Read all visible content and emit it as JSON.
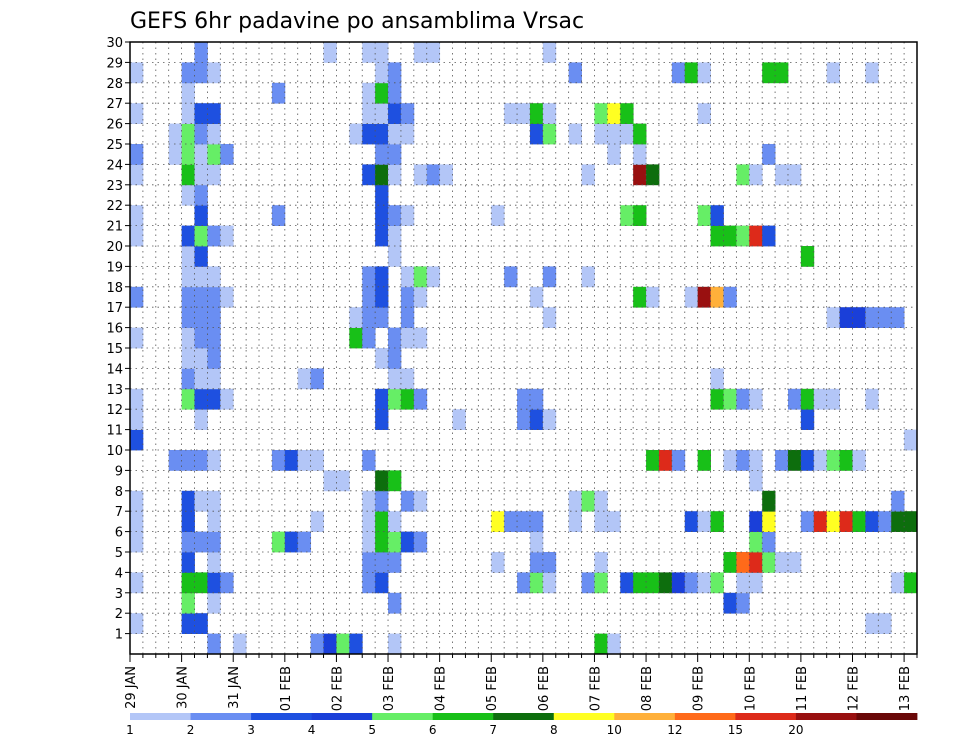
{
  "chart_data": {
    "type": "heatmap",
    "title": "GEFS 6hr padavine po ansamblima Vrsac",
    "xlabel": "",
    "ylabel": "",
    "x_ticks": [
      "29 JAN",
      "30 JAN",
      "31 JAN",
      "01 FEB",
      "02 FEB",
      "03 FEB",
      "04 FEB",
      "05 FEB",
      "06 FEB",
      "07 FEB",
      "08 FEB",
      "09 FEB",
      "10 FEB",
      "11 FEB",
      "12 FEB",
      "13 FEB"
    ],
    "y_ticks": [
      1,
      2,
      3,
      4,
      5,
      6,
      7,
      8,
      9,
      10,
      11,
      12,
      13,
      14,
      15,
      16,
      17,
      18,
      19,
      20,
      21,
      22,
      23,
      24,
      25,
      26,
      27,
      28,
      29,
      30
    ],
    "ylim": [
      0,
      30
    ],
    "time_steps": 61,
    "steps_per_day": 4,
    "grid": true,
    "legend_position": "bottom",
    "legend": {
      "labels": [
        "1",
        "2",
        "3",
        "4",
        "5",
        "6",
        "7",
        "8",
        "10",
        "12",
        "15",
        "20"
      ],
      "colors": [
        "#b3c6f7",
        "#6a8ef2",
        "#1e50e0",
        "#1a3fd9",
        "#66ee66",
        "#18c018",
        "#0d6e0d",
        "#ffff22",
        "#ffb03a",
        "#ff6a1a",
        "#dd2a1a",
        "#991010",
        "#6a0808"
      ]
    },
    "cells": [
      [
        1,
        7,
        2
      ],
      [
        1,
        9,
        1
      ],
      [
        1,
        15,
        2
      ],
      [
        1,
        16,
        4
      ],
      [
        1,
        17,
        5
      ],
      [
        1,
        18,
        3
      ],
      [
        1,
        21,
        1
      ],
      [
        1,
        37,
        6
      ],
      [
        1,
        38,
        1
      ],
      [
        2,
        1,
        1
      ],
      [
        2,
        5,
        3
      ],
      [
        2,
        6,
        3
      ],
      [
        2,
        58,
        1
      ],
      [
        2,
        59,
        1
      ],
      [
        3,
        5,
        5
      ],
      [
        3,
        7,
        1
      ],
      [
        3,
        21,
        2
      ],
      [
        3,
        47,
        3
      ],
      [
        3,
        48,
        2
      ],
      [
        4,
        1,
        1
      ],
      [
        4,
        5,
        6
      ],
      [
        4,
        6,
        6
      ],
      [
        4,
        7,
        3
      ],
      [
        4,
        8,
        2
      ],
      [
        4,
        19,
        2
      ],
      [
        4,
        20,
        3
      ],
      [
        4,
        31,
        2
      ],
      [
        4,
        32,
        5
      ],
      [
        4,
        33,
        1
      ],
      [
        4,
        36,
        2
      ],
      [
        4,
        37,
        5
      ],
      [
        4,
        39,
        3
      ],
      [
        4,
        40,
        6
      ],
      [
        4,
        41,
        6
      ],
      [
        4,
        42,
        7
      ],
      [
        4,
        43,
        4
      ],
      [
        4,
        44,
        2
      ],
      [
        4,
        45,
        1
      ],
      [
        4,
        46,
        5
      ],
      [
        4,
        48,
        1
      ],
      [
        4,
        49,
        1
      ],
      [
        4,
        60,
        1
      ],
      [
        4,
        61,
        6
      ],
      [
        5,
        5,
        3
      ],
      [
        5,
        7,
        1
      ],
      [
        5,
        19,
        2
      ],
      [
        5,
        20,
        2
      ],
      [
        5,
        21,
        2
      ],
      [
        5,
        29,
        1
      ],
      [
        5,
        32,
        2
      ],
      [
        5,
        33,
        2
      ],
      [
        5,
        37,
        1
      ],
      [
        5,
        47,
        6
      ],
      [
        5,
        48,
        10
      ],
      [
        5,
        49,
        11
      ],
      [
        5,
        50,
        5
      ],
      [
        5,
        51,
        1
      ],
      [
        5,
        52,
        1
      ],
      [
        6,
        1,
        1
      ],
      [
        6,
        5,
        2
      ],
      [
        6,
        6,
        2
      ],
      [
        6,
        7,
        2
      ],
      [
        6,
        12,
        5
      ],
      [
        6,
        13,
        3
      ],
      [
        6,
        14,
        2
      ],
      [
        6,
        19,
        1
      ],
      [
        6,
        20,
        6
      ],
      [
        6,
        21,
        5
      ],
      [
        6,
        22,
        3
      ],
      [
        6,
        23,
        2
      ],
      [
        6,
        32,
        1
      ],
      [
        6,
        49,
        5
      ],
      [
        6,
        50,
        2
      ],
      [
        7,
        1,
        1
      ],
      [
        7,
        5,
        3
      ],
      [
        7,
        7,
        1
      ],
      [
        7,
        15,
        1
      ],
      [
        7,
        19,
        1
      ],
      [
        7,
        20,
        6
      ],
      [
        7,
        21,
        1
      ],
      [
        7,
        29,
        8
      ],
      [
        7,
        30,
        2
      ],
      [
        7,
        31,
        2
      ],
      [
        7,
        32,
        2
      ],
      [
        7,
        35,
        1
      ],
      [
        7,
        37,
        1
      ],
      [
        7,
        38,
        1
      ],
      [
        7,
        44,
        3
      ],
      [
        7,
        45,
        1
      ],
      [
        7,
        46,
        6
      ],
      [
        7,
        49,
        4
      ],
      [
        7,
        50,
        8
      ],
      [
        7,
        53,
        2
      ],
      [
        7,
        54,
        11
      ],
      [
        7,
        55,
        8
      ],
      [
        7,
        56,
        11
      ],
      [
        7,
        57,
        6
      ],
      [
        7,
        58,
        3
      ],
      [
        7,
        59,
        2
      ],
      [
        7,
        60,
        7
      ],
      [
        7,
        61,
        7
      ],
      [
        8,
        1,
        1
      ],
      [
        8,
        5,
        3
      ],
      [
        8,
        6,
        1
      ],
      [
        8,
        7,
        1
      ],
      [
        8,
        19,
        1
      ],
      [
        8,
        20,
        2
      ],
      [
        8,
        22,
        2
      ],
      [
        8,
        23,
        1
      ],
      [
        8,
        35,
        1
      ],
      [
        8,
        36,
        5
      ],
      [
        8,
        37,
        1
      ],
      [
        8,
        50,
        7
      ],
      [
        8,
        60,
        2
      ],
      [
        9,
        16,
        1
      ],
      [
        9,
        17,
        1
      ],
      [
        9,
        20,
        7
      ],
      [
        9,
        21,
        6
      ],
      [
        9,
        49,
        1
      ],
      [
        10,
        4,
        2
      ],
      [
        10,
        5,
        2
      ],
      [
        10,
        6,
        2
      ],
      [
        10,
        7,
        1
      ],
      [
        10,
        12,
        2
      ],
      [
        10,
        13,
        3
      ],
      [
        10,
        14,
        1
      ],
      [
        10,
        15,
        1
      ],
      [
        10,
        19,
        2
      ],
      [
        10,
        41,
        6
      ],
      [
        10,
        42,
        11
      ],
      [
        10,
        43,
        2
      ],
      [
        10,
        45,
        6
      ],
      [
        10,
        47,
        1
      ],
      [
        10,
        48,
        2
      ],
      [
        10,
        49,
        1
      ],
      [
        10,
        51,
        2
      ],
      [
        10,
        52,
        7
      ],
      [
        10,
        53,
        3
      ],
      [
        10,
        54,
        1
      ],
      [
        10,
        55,
        5
      ],
      [
        10,
        56,
        6
      ],
      [
        10,
        57,
        1
      ],
      [
        11,
        1,
        3
      ],
      [
        11,
        61,
        1
      ],
      [
        12,
        1,
        1
      ],
      [
        12,
        6,
        1
      ],
      [
        12,
        20,
        3
      ],
      [
        12,
        26,
        1
      ],
      [
        12,
        31,
        2
      ],
      [
        12,
        32,
        3
      ],
      [
        12,
        33,
        1
      ],
      [
        12,
        53,
        3
      ],
      [
        13,
        1,
        1
      ],
      [
        13,
        5,
        5
      ],
      [
        13,
        6,
        3
      ],
      [
        13,
        7,
        3
      ],
      [
        13,
        8,
        1
      ],
      [
        13,
        20,
        3
      ],
      [
        13,
        21,
        5
      ],
      [
        13,
        22,
        6
      ],
      [
        13,
        23,
        2
      ],
      [
        13,
        31,
        2
      ],
      [
        13,
        32,
        2
      ],
      [
        13,
        46,
        6
      ],
      [
        13,
        47,
        5
      ],
      [
        13,
        48,
        2
      ],
      [
        13,
        49,
        1
      ],
      [
        13,
        52,
        2
      ],
      [
        13,
        53,
        6
      ],
      [
        13,
        54,
        1
      ],
      [
        13,
        55,
        1
      ],
      [
        13,
        58,
        1
      ],
      [
        14,
        5,
        2
      ],
      [
        14,
        6,
        1
      ],
      [
        14,
        7,
        1
      ],
      [
        14,
        14,
        1
      ],
      [
        14,
        15,
        2
      ],
      [
        14,
        21,
        1
      ],
      [
        14,
        22,
        1
      ],
      [
        14,
        46,
        1
      ],
      [
        15,
        5,
        1
      ],
      [
        15,
        6,
        1
      ],
      [
        15,
        7,
        2
      ],
      [
        15,
        20,
        1
      ],
      [
        15,
        21,
        2
      ],
      [
        16,
        1,
        1
      ],
      [
        16,
        5,
        1
      ],
      [
        16,
        6,
        2
      ],
      [
        16,
        7,
        2
      ],
      [
        16,
        18,
        6
      ],
      [
        16,
        19,
        2
      ],
      [
        16,
        21,
        2
      ],
      [
        16,
        22,
        1
      ],
      [
        16,
        23,
        1
      ],
      [
        17,
        5,
        2
      ],
      [
        17,
        6,
        2
      ],
      [
        17,
        7,
        2
      ],
      [
        17,
        18,
        1
      ],
      [
        17,
        19,
        2
      ],
      [
        17,
        20,
        2
      ],
      [
        17,
        22,
        2
      ],
      [
        17,
        33,
        1
      ],
      [
        17,
        55,
        1
      ],
      [
        17,
        56,
        4
      ],
      [
        17,
        57,
        4
      ],
      [
        17,
        58,
        2
      ],
      [
        17,
        59,
        2
      ],
      [
        17,
        60,
        2
      ],
      [
        18,
        1,
        2
      ],
      [
        18,
        5,
        2
      ],
      [
        18,
        6,
        2
      ],
      [
        18,
        7,
        2
      ],
      [
        18,
        8,
        1
      ],
      [
        18,
        19,
        2
      ],
      [
        18,
        20,
        3
      ],
      [
        18,
        22,
        2
      ],
      [
        18,
        23,
        1
      ],
      [
        18,
        32,
        1
      ],
      [
        18,
        40,
        6
      ],
      [
        18,
        41,
        1
      ],
      [
        18,
        44,
        1
      ],
      [
        18,
        45,
        12
      ],
      [
        18,
        46,
        9
      ],
      [
        18,
        47,
        2
      ],
      [
        19,
        5,
        1
      ],
      [
        19,
        6,
        1
      ],
      [
        19,
        7,
        1
      ],
      [
        19,
        19,
        2
      ],
      [
        19,
        20,
        3
      ],
      [
        19,
        22,
        1
      ],
      [
        19,
        23,
        5
      ],
      [
        19,
        24,
        1
      ],
      [
        19,
        30,
        2
      ],
      [
        19,
        33,
        2
      ],
      [
        19,
        36,
        1
      ],
      [
        20,
        5,
        1
      ],
      [
        20,
        6,
        3
      ],
      [
        20,
        21,
        1
      ],
      [
        20,
        53,
        6
      ],
      [
        21,
        1,
        1
      ],
      [
        21,
        5,
        3
      ],
      [
        21,
        6,
        5
      ],
      [
        21,
        7,
        2
      ],
      [
        21,
        8,
        1
      ],
      [
        21,
        20,
        3
      ],
      [
        21,
        21,
        1
      ],
      [
        21,
        46,
        6
      ],
      [
        21,
        47,
        6
      ],
      [
        21,
        48,
        5
      ],
      [
        21,
        49,
        11
      ],
      [
        21,
        50,
        3
      ],
      [
        22,
        1,
        1
      ],
      [
        22,
        6,
        3
      ],
      [
        22,
        12,
        2
      ],
      [
        22,
        20,
        3
      ],
      [
        22,
        21,
        2
      ],
      [
        22,
        22,
        1
      ],
      [
        22,
        29,
        1
      ],
      [
        22,
        39,
        5
      ],
      [
        22,
        40,
        6
      ],
      [
        22,
        45,
        5
      ],
      [
        22,
        46,
        3
      ],
      [
        23,
        5,
        1
      ],
      [
        23,
        6,
        2
      ],
      [
        23,
        20,
        3
      ],
      [
        24,
        1,
        1
      ],
      [
        24,
        5,
        6
      ],
      [
        24,
        6,
        1
      ],
      [
        24,
        7,
        1
      ],
      [
        24,
        19,
        3
      ],
      [
        24,
        20,
        7
      ],
      [
        24,
        21,
        1
      ],
      [
        24,
        23,
        1
      ],
      [
        24,
        24,
        2
      ],
      [
        24,
        25,
        1
      ],
      [
        24,
        36,
        1
      ],
      [
        24,
        40,
        12
      ],
      [
        24,
        41,
        7
      ],
      [
        24,
        48,
        5
      ],
      [
        24,
        49,
        1
      ],
      [
        24,
        51,
        1
      ],
      [
        24,
        52,
        1
      ],
      [
        25,
        1,
        2
      ],
      [
        25,
        4,
        1
      ],
      [
        25,
        5,
        5
      ],
      [
        25,
        6,
        1
      ],
      [
        25,
        7,
        5
      ],
      [
        25,
        8,
        2
      ],
      [
        25,
        20,
        2
      ],
      [
        25,
        21,
        2
      ],
      [
        25,
        38,
        1
      ],
      [
        25,
        40,
        1
      ],
      [
        25,
        50,
        2
      ],
      [
        26,
        4,
        1
      ],
      [
        26,
        5,
        5
      ],
      [
        26,
        6,
        2
      ],
      [
        26,
        7,
        1
      ],
      [
        26,
        18,
        1
      ],
      [
        26,
        19,
        3
      ],
      [
        26,
        20,
        3
      ],
      [
        26,
        21,
        1
      ],
      [
        26,
        22,
        1
      ],
      [
        26,
        32,
        3
      ],
      [
        26,
        33,
        5
      ],
      [
        26,
        35,
        1
      ],
      [
        26,
        37,
        1
      ],
      [
        26,
        38,
        1
      ],
      [
        26,
        39,
        1
      ],
      [
        26,
        40,
        6
      ],
      [
        27,
        1,
        1
      ],
      [
        27,
        5,
        1
      ],
      [
        27,
        6,
        3
      ],
      [
        27,
        7,
        3
      ],
      [
        27,
        19,
        1
      ],
      [
        27,
        20,
        1
      ],
      [
        27,
        21,
        3
      ],
      [
        27,
        22,
        2
      ],
      [
        27,
        30,
        1
      ],
      [
        27,
        31,
        1
      ],
      [
        27,
        32,
        6
      ],
      [
        27,
        33,
        1
      ],
      [
        27,
        37,
        5
      ],
      [
        27,
        38,
        8
      ],
      [
        27,
        39,
        6
      ],
      [
        27,
        45,
        1
      ],
      [
        28,
        5,
        1
      ],
      [
        28,
        12,
        2
      ],
      [
        28,
        19,
        1
      ],
      [
        28,
        20,
        6
      ],
      [
        28,
        21,
        2
      ],
      [
        29,
        1,
        1
      ],
      [
        29,
        5,
        2
      ],
      [
        29,
        6,
        2
      ],
      [
        29,
        7,
        1
      ],
      [
        29,
        20,
        1
      ],
      [
        29,
        21,
        2
      ],
      [
        29,
        35,
        2
      ],
      [
        29,
        43,
        2
      ],
      [
        29,
        44,
        6
      ],
      [
        29,
        45,
        1
      ],
      [
        29,
        50,
        6
      ],
      [
        29,
        51,
        6
      ],
      [
        29,
        55,
        1
      ],
      [
        29,
        58,
        1
      ],
      [
        30,
        6,
        2
      ],
      [
        30,
        16,
        1
      ],
      [
        30,
        19,
        1
      ],
      [
        30,
        20,
        1
      ],
      [
        30,
        23,
        1
      ],
      [
        30,
        24,
        1
      ],
      [
        30,
        33,
        1
      ]
    ]
  }
}
